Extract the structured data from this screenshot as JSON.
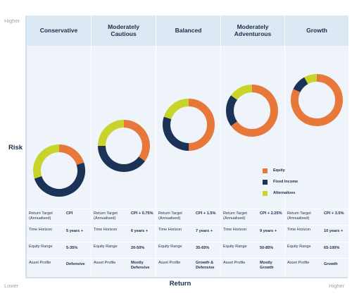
{
  "axes": {
    "y_top_label": "Higher",
    "y_title": "Risk",
    "x_left_label": "Lower",
    "x_title": "Return",
    "x_right_label": "Higher"
  },
  "colors": {
    "equity": "#e8773a",
    "fixed_income": "#1c3358",
    "alternatives": "#c9d42b",
    "header_bg": "#dce8f3",
    "panel_bg": "#eef4fa",
    "text": "#1c2d4c"
  },
  "legend": [
    {
      "name": "Equity",
      "color_key": "equity"
    },
    {
      "name": "Fixed Income",
      "color_key": "fixed_income"
    },
    {
      "name": "Alternatives",
      "color_key": "alternatives"
    }
  ],
  "row_labels": {
    "return_target": "Return Target (Annualised)",
    "time_horizon": "Time Horizon",
    "equity_range": "Equity Range",
    "asset_profile": "Asset Profile"
  },
  "profiles": [
    {
      "name": "Conservative",
      "return_target": "CPI",
      "time_horizon": "5 years +",
      "equity_range": "5-35%",
      "asset_profile": "Defensive"
    },
    {
      "name": "Moderately Cautious",
      "return_target": "CPI + 0.75%",
      "time_horizon": "6 years +",
      "equity_range": "20-50%",
      "asset_profile": "Mostly Defensive"
    },
    {
      "name": "Balanced",
      "return_target": "CPI + 1.5%",
      "time_horizon": "7 years +",
      "equity_range": "35-65%",
      "asset_profile": "Growth & Defensive"
    },
    {
      "name": "Moderately Adventurous",
      "return_target": "CPI + 2.25%",
      "time_horizon": "9 years +",
      "equity_range": "50-85%",
      "asset_profile": "Mostly Growth"
    },
    {
      "name": "Growth",
      "return_target": "CPI + 3.5%",
      "time_horizon": "10 years +",
      "equity_range": "65-100%",
      "asset_profile": "Growth"
    }
  ],
  "chart_data": {
    "type": "pie",
    "variant": "donut",
    "categories": [
      "Conservative",
      "Moderately Cautious",
      "Balanced",
      "Moderately Adventurous",
      "Growth"
    ],
    "series": [
      {
        "name": "Equity",
        "values": [
          20,
          35,
          50,
          65,
          82
        ]
      },
      {
        "name": "Fixed Income",
        "values": [
          50,
          40,
          30,
          20,
          10
        ]
      },
      {
        "name": "Alternatives",
        "values": [
          30,
          25,
          20,
          15,
          8
        ]
      }
    ],
    "xlabel": "Return",
    "ylabel": "Risk",
    "legend_position": "right",
    "grid": false
  }
}
